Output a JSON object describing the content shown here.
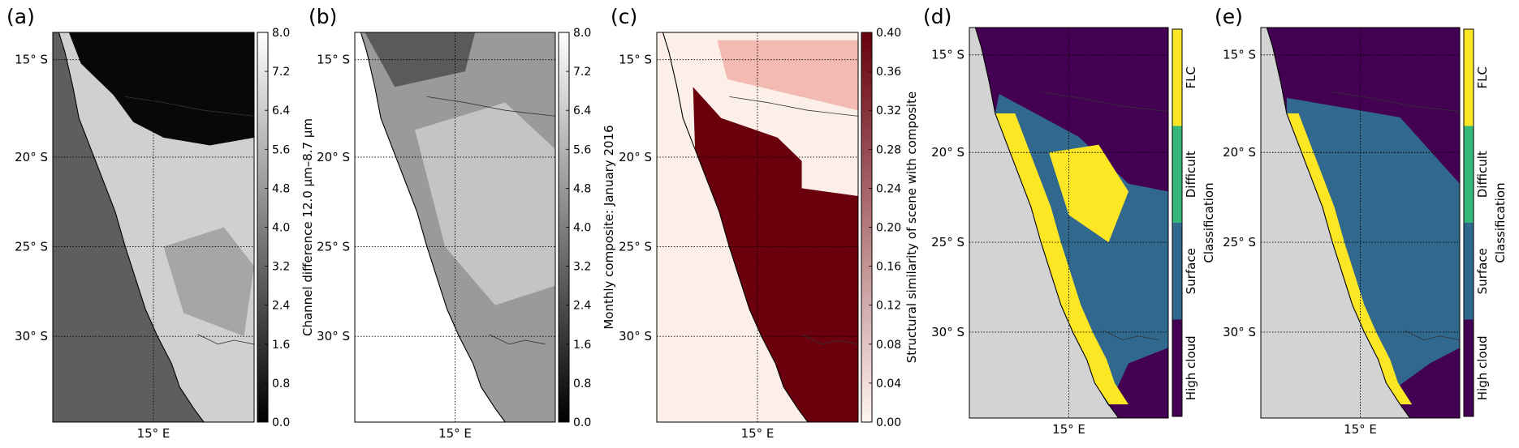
{
  "figure": {
    "panels": [
      {
        "letter": "(a)",
        "lat_ticks": [
          "15° S",
          "20° S",
          "25° S",
          "30° S"
        ],
        "lon_ticks": [
          "15° E"
        ],
        "colorbar": {
          "type": "continuous",
          "ticks": [
            "8.0",
            "7.2",
            "6.4",
            "5.6",
            "4.8",
            "4.0",
            "3.2",
            "2.4",
            "1.6",
            "0.8",
            "0.0"
          ],
          "label": "Channel difference 12.0 μm–8.7 μm",
          "colormap": "greys",
          "colors": [
            "#ffffff",
            "#000000"
          ]
        }
      },
      {
        "letter": "(b)",
        "lat_ticks": [
          "15° S",
          "20° S",
          "25° S",
          "30° S"
        ],
        "lon_ticks": [
          "15° E"
        ],
        "colorbar": {
          "type": "continuous",
          "ticks": [
            "8.0",
            "7.2",
            "6.4",
            "5.6",
            "4.8",
            "4.0",
            "3.2",
            "2.4",
            "1.6",
            "0.8",
            "0.0"
          ],
          "label": "Monthly composite: January 2016",
          "colormap": "greys",
          "colors": [
            "#ffffff",
            "#000000"
          ]
        }
      },
      {
        "letter": "(c)",
        "lat_ticks": [
          "15° S",
          "20° S",
          "25° S",
          "30° S"
        ],
        "lon_ticks": [
          "15° E"
        ],
        "colorbar": {
          "type": "continuous",
          "ticks": [
            "0.40",
            "0.36",
            "0.32",
            "0.28",
            "0.24",
            "0.20",
            "0.16",
            "0.12",
            "0.08",
            "0.04",
            "0.00"
          ],
          "label": "Structural similarity of scene with composite",
          "colormap": "reds",
          "colors": [
            "#67000d",
            "#fff5f0"
          ]
        }
      },
      {
        "letter": "(d)",
        "lat_ticks": [
          "15° S",
          "20° S",
          "25° S",
          "30° S"
        ],
        "lon_ticks": [
          "15° E"
        ],
        "colorbar": {
          "type": "categorical",
          "classes": [
            "FLC",
            "Difficult",
            "Surface",
            "High cloud"
          ],
          "colors": [
            "#fde725",
            "#35b779",
            "#31688e",
            "#440154"
          ],
          "label": "Classification"
        }
      },
      {
        "letter": "(e)",
        "lat_ticks": [
          "15° S",
          "20° S",
          "25° S",
          "30° S"
        ],
        "lon_ticks": [
          "15° E"
        ],
        "colorbar": {
          "type": "categorical",
          "classes": [
            "FLC",
            "Difficult",
            "Surface",
            "High cloud"
          ],
          "colors": [
            "#fde725",
            "#35b779",
            "#31688e",
            "#440154"
          ],
          "label": "Classification"
        }
      }
    ],
    "map_colors": {
      "background_land": "#d3d3d3",
      "ocean_gray": "#5e5e5e",
      "land_bright": "#d0d0d0",
      "upper_dark": "#080808",
      "ssim_low": "#fcefe9",
      "ssim_high": "#6b000d",
      "class_high_cloud": "#440154",
      "class_surface": "#31688e",
      "class_flc": "#fde725"
    }
  }
}
